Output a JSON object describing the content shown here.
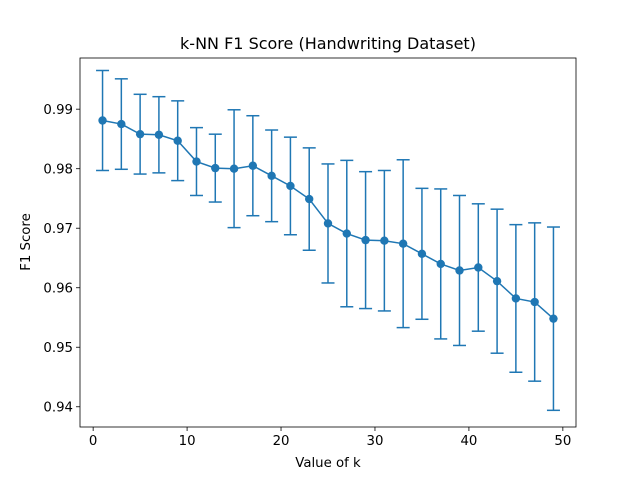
{
  "chart_data": {
    "type": "line",
    "title": "k-NN F1 Score (Handwriting Dataset)",
    "xlabel": "Value of k",
    "ylabel": "F1 Score",
    "xlim": [
      -1.4,
      51.4
    ],
    "ylim": [
      0.9366,
      0.9986
    ],
    "x_ticks": [
      0,
      10,
      20,
      30,
      40,
      50
    ],
    "y_ticks": [
      0.94,
      0.95,
      0.96,
      0.97,
      0.98,
      0.99
    ],
    "x_tick_labels": [
      "0",
      "10",
      "20",
      "30",
      "40",
      "50"
    ],
    "y_tick_labels": [
      "0.94",
      "0.95",
      "0.96",
      "0.97",
      "0.98",
      "0.99"
    ],
    "grid": false,
    "legend": "none",
    "color": "#1f77b4",
    "series": [
      {
        "x": [
          1,
          3,
          5,
          7,
          9,
          11,
          13,
          15,
          17,
          19,
          21,
          23,
          25,
          27,
          29,
          31,
          33,
          35,
          37,
          39,
          41,
          43,
          45,
          47,
          49
        ],
        "y": [
          0.9881,
          0.9875,
          0.9858,
          0.9857,
          0.9847,
          0.9812,
          0.9801,
          0.98,
          0.9805,
          0.9788,
          0.9771,
          0.9749,
          0.9708,
          0.9691,
          0.968,
          0.9679,
          0.9674,
          0.9657,
          0.964,
          0.9629,
          0.9634,
          0.9611,
          0.9582,
          0.9576,
          0.9548
        ],
        "error": [
          0.0084,
          0.0076,
          0.0067,
          0.0064,
          0.0067,
          0.0057,
          0.0057,
          0.0099,
          0.0084,
          0.0077,
          0.0082,
          0.0086,
          0.01,
          0.0123,
          0.0115,
          0.0118,
          0.0141,
          0.011,
          0.0126,
          0.0126,
          0.0107,
          0.0121,
          0.0124,
          0.0133,
          0.0154
        ]
      }
    ]
  }
}
